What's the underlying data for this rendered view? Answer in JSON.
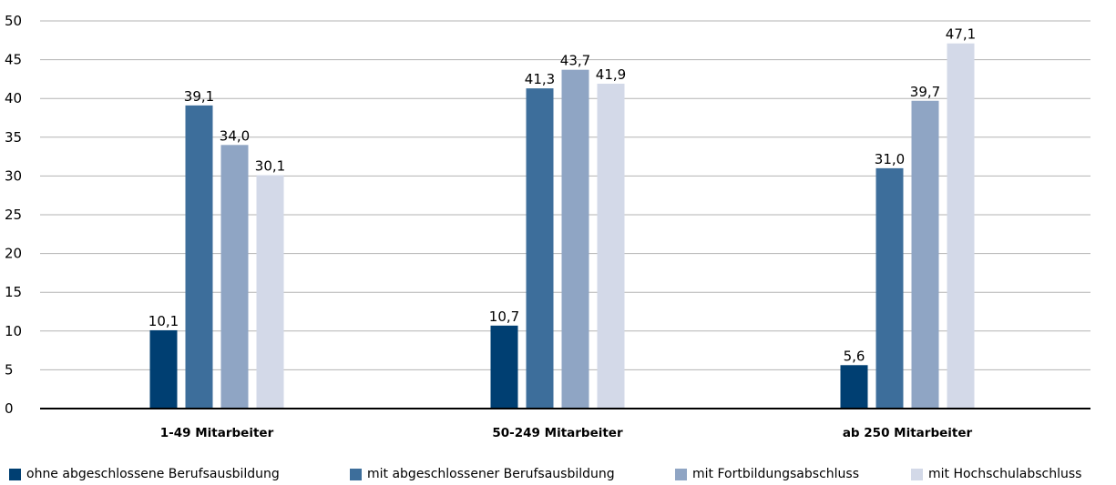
{
  "chart_data": {
    "type": "bar",
    "title": "",
    "xlabel": "",
    "ylabel": "",
    "ylim": [
      0,
      50
    ],
    "yticks": [
      0,
      5,
      10,
      15,
      20,
      25,
      30,
      35,
      40,
      45,
      50
    ],
    "grid": true,
    "legend_position": "bottom",
    "categories": [
      "1-49 Mitarbeiter",
      "50-249 Mitarbeiter",
      "ab 250 Mitarbeiter"
    ],
    "series": [
      {
        "name": "ohne abgeschlossene Berufsausbildung",
        "color": "#003f72",
        "values": [
          10.1,
          10.7,
          5.6
        ],
        "labels": [
          "10,1",
          "10,7",
          "5,6"
        ]
      },
      {
        "name": "mit abgeschlossener Berufsausbildung",
        "color": "#3d6e9b",
        "values": [
          39.1,
          41.3,
          31.0
        ],
        "labels": [
          "39,1",
          "41,3",
          "31,0"
        ]
      },
      {
        "name": "mit Fortbildungsabschluss",
        "color": "#8fa5c4",
        "values": [
          34.0,
          43.7,
          39.7
        ],
        "labels": [
          "34,0",
          "43,7",
          "39,7"
        ]
      },
      {
        "name": "mit Hochschulabschluss",
        "color": "#d3d9e8",
        "values": [
          30.1,
          41.9,
          47.1
        ],
        "labels": [
          "30,1",
          "41,9",
          "47,1"
        ]
      }
    ]
  }
}
